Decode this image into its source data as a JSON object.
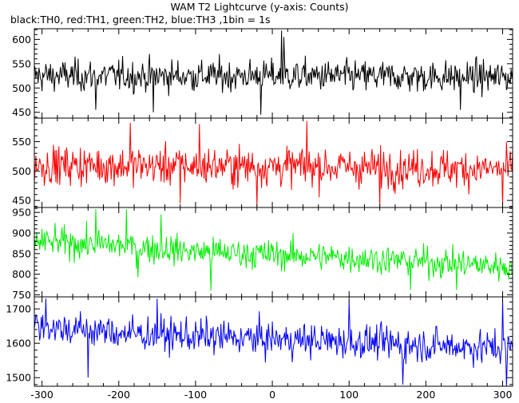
{
  "chart_data": {
    "type": "line",
    "title": "WAM T2 Lightcurve (y-axis: Counts)",
    "subtitle": "black:TH0, red:TH1, green:TH2, blue:TH3 ,1bin = 1s",
    "xlim": [
      -310,
      313
    ],
    "x_ticks": [
      -300,
      -200,
      -100,
      0,
      100,
      200,
      300
    ],
    "x_step": 1,
    "grid": false,
    "panels": [
      {
        "name": "TH0",
        "color": "#000000",
        "ylim": [
          438,
          622
        ],
        "y_ticks": [
          450,
          500,
          550,
          600
        ],
        "series_baseline": [
          [
            -310,
            525
          ],
          [
            0,
            525
          ],
          [
            313,
            522
          ]
        ],
        "noise_sigma": 23,
        "spikes": [
          [
            12,
            618
          ],
          [
            15,
            605
          ],
          [
            -230,
            455
          ],
          [
            -155,
            450
          ],
          [
            -15,
            445
          ],
          [
            245,
            455
          ]
        ]
      },
      {
        "name": "TH1",
        "color": "#ff0000",
        "ylim": [
          438,
          590
        ],
        "y_ticks": [
          450,
          500,
          550
        ],
        "series_baseline": [
          [
            -310,
            510
          ],
          [
            0,
            508
          ],
          [
            313,
            503
          ]
        ],
        "noise_sigma": 23,
        "spikes": [
          [
            -185,
            582
          ],
          [
            -95,
            580
          ],
          [
            45,
            585
          ],
          [
            -120,
            445
          ],
          [
            -20,
            440
          ],
          [
            140,
            440
          ],
          [
            300,
            440
          ]
        ]
      },
      {
        "name": "TH2",
        "color": "#00ee00",
        "ylim": [
          745,
          962
        ],
        "y_ticks": [
          750,
          800,
          850,
          900,
          950
        ],
        "series_baseline": [
          [
            -310,
            880
          ],
          [
            -200,
            870
          ],
          [
            -100,
            855
          ],
          [
            0,
            848
          ],
          [
            100,
            840
          ],
          [
            200,
            830
          ],
          [
            313,
            818
          ]
        ],
        "noise_sigma": 25,
        "spikes": [
          [
            -230,
            958
          ],
          [
            -190,
            958
          ],
          [
            -145,
            945
          ],
          [
            -175,
            792
          ],
          [
            -80,
            760
          ],
          [
            180,
            762
          ],
          [
            240,
            762
          ]
        ]
      },
      {
        "name": "TH3",
        "color": "#0000ff",
        "ylim": [
          1475,
          1735
        ],
        "y_ticks": [
          1500,
          1600,
          1700
        ],
        "series_baseline": [
          [
            -310,
            1650
          ],
          [
            -200,
            1630
          ],
          [
            -100,
            1620
          ],
          [
            0,
            1612
          ],
          [
            100,
            1605
          ],
          [
            200,
            1595
          ],
          [
            313,
            1585
          ]
        ],
        "noise_sigma": 35,
        "spikes": [
          [
            -295,
            1730
          ],
          [
            -150,
            1730
          ],
          [
            100,
            1722
          ],
          [
            300,
            1728
          ],
          [
            -240,
            1500
          ],
          [
            170,
            1480
          ],
          [
            305,
            1475
          ]
        ]
      }
    ]
  }
}
